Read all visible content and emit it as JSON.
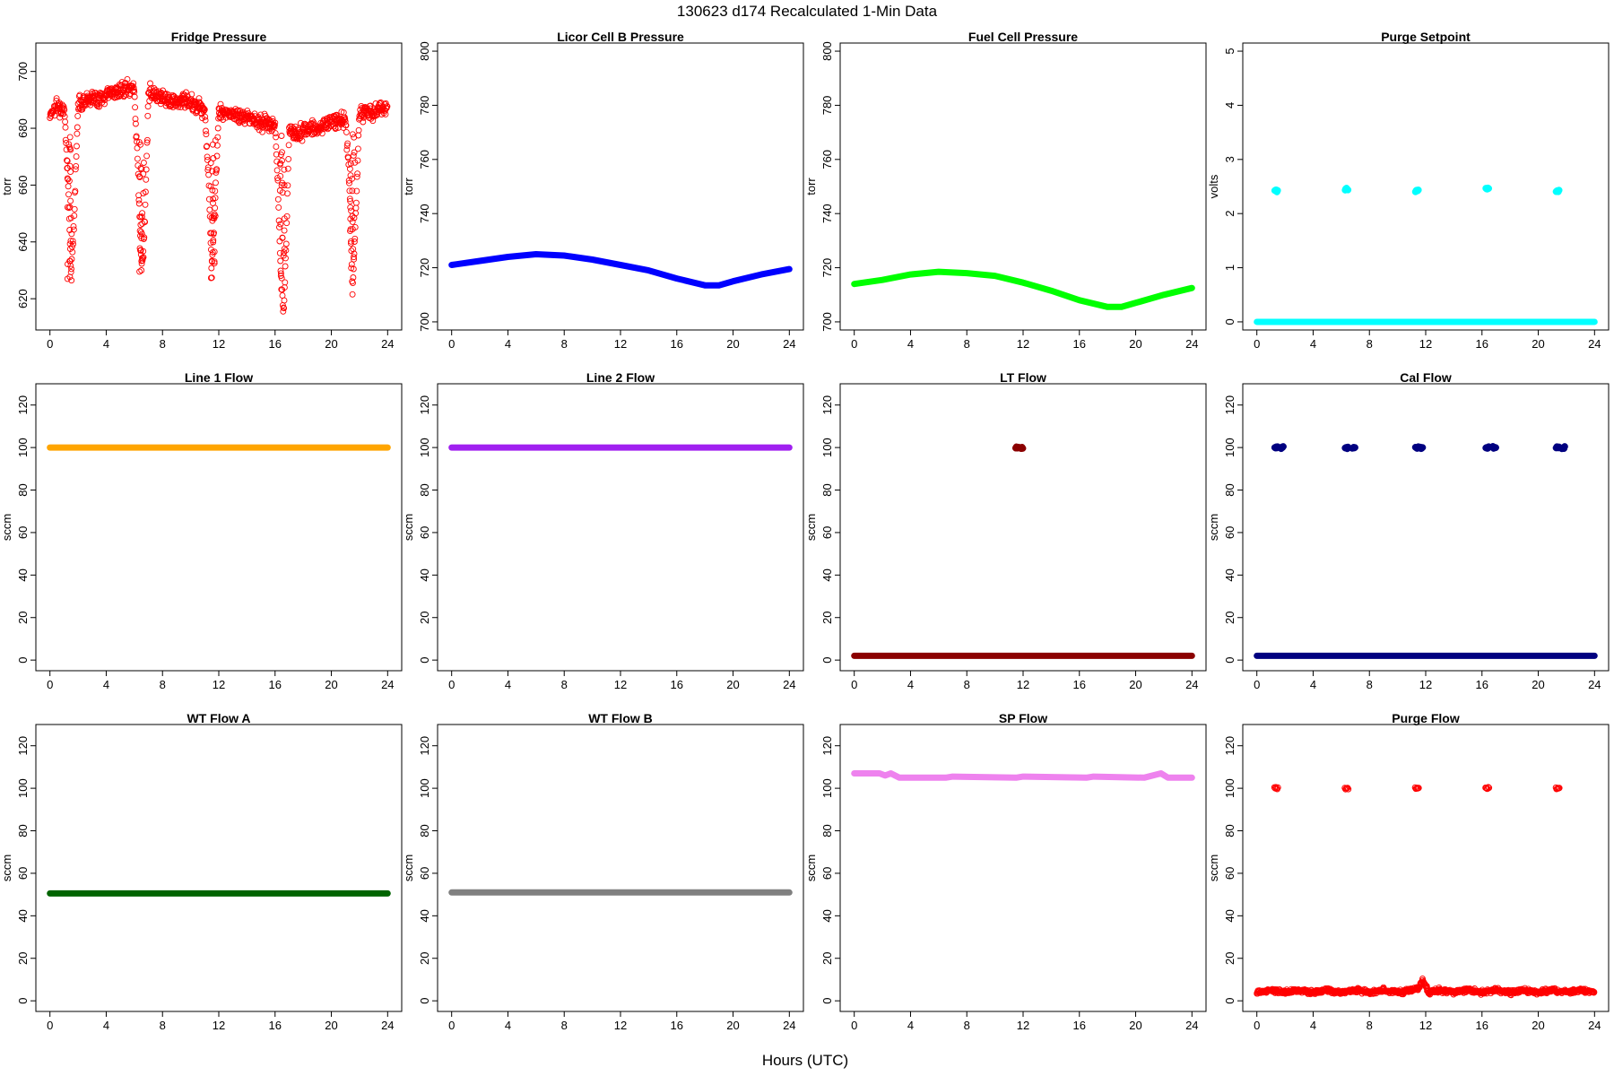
{
  "figure": {
    "title": "130623   d174   Recalculated 1-Min Data",
    "xlabel": "Hours (UTC)"
  },
  "chart_data": [
    {
      "type": "scatter",
      "title": "Fridge Pressure",
      "ylabel": "torr",
      "xlabel": "",
      "xlim": [
        -1,
        25
      ],
      "ylim": [
        609,
        710
      ],
      "xticks": [
        0,
        4,
        8,
        12,
        16,
        20,
        24
      ],
      "yticks": [
        620,
        640,
        660,
        680,
        700
      ],
      "color": "#ff0000",
      "marker": "open-circle",
      "series": [
        {
          "x": [
            0,
            0.5,
            1,
            1.3,
            1.5,
            1.7,
            2,
            2.5,
            3,
            3.5,
            4,
            4.5,
            5,
            5.5,
            6,
            6.3,
            6.5,
            6.7,
            7,
            7.5,
            8,
            8.5,
            9,
            9.5,
            10,
            10.5,
            11,
            11.3,
            11.5,
            11.7,
            12,
            12.5,
            13,
            13.5,
            14,
            14.5,
            15,
            15.5,
            16,
            16.2,
            16.4,
            16.6,
            16.8,
            17,
            17.5,
            18,
            18.5,
            19,
            19.5,
            20,
            20.5,
            21,
            21.3,
            21.5,
            21.7,
            22,
            22.5,
            23,
            23.5,
            24
          ],
          "y": [
            685,
            688,
            687,
            660,
            630,
            645,
            689,
            690,
            691,
            690,
            692,
            693,
            693,
            694,
            694,
            660,
            630,
            640,
            693,
            692,
            691,
            690,
            689,
            690,
            689,
            688,
            687,
            660,
            628,
            650,
            686,
            685,
            685,
            684,
            684,
            683,
            682,
            682,
            681,
            660,
            628,
            615,
            640,
            680,
            678,
            679,
            680,
            680,
            681,
            682,
            683,
            683,
            660,
            622,
            645,
            685,
            686,
            686,
            687,
            687
          ]
        }
      ]
    },
    {
      "type": "line",
      "title": "Licor Cell B Pressure",
      "ylabel": "torr",
      "xlabel": "",
      "xlim": [
        -1,
        25
      ],
      "ylim": [
        697,
        803
      ],
      "xticks": [
        0,
        4,
        8,
        12,
        16,
        20,
        24
      ],
      "yticks": [
        700,
        720,
        740,
        760,
        780,
        800
      ],
      "color": "#0000ff",
      "series": [
        {
          "x": [
            0,
            2,
            4,
            6,
            8,
            10,
            12,
            14,
            16,
            18,
            19,
            20,
            22,
            24
          ],
          "y": [
            721,
            722.5,
            724,
            725,
            724.5,
            723,
            721,
            719,
            716,
            713.5,
            713.5,
            715,
            717.5,
            719.5
          ]
        }
      ]
    },
    {
      "type": "line",
      "title": "Fuel Cell Pressure",
      "ylabel": "torr",
      "xlabel": "",
      "xlim": [
        -1,
        25
      ],
      "ylim": [
        697,
        803
      ],
      "xticks": [
        0,
        4,
        8,
        12,
        16,
        20,
        24
      ],
      "yticks": [
        700,
        720,
        740,
        760,
        780,
        800
      ],
      "color": "#00ff00",
      "series": [
        {
          "x": [
            0,
            2,
            4,
            6,
            8,
            10,
            12,
            14,
            16,
            18,
            19,
            20,
            22,
            24
          ],
          "y": [
            714,
            715.5,
            717.5,
            718.5,
            718,
            717,
            714.5,
            711.5,
            708,
            705.5,
            705.5,
            707,
            710,
            712.5
          ]
        }
      ]
    },
    {
      "type": "scatter",
      "title": "Purge Setpoint",
      "ylabel": "volts",
      "xlabel": "",
      "xlim": [
        -1,
        25
      ],
      "ylim": [
        -0.15,
        5.15
      ],
      "xticks": [
        0,
        4,
        8,
        12,
        16,
        20,
        24
      ],
      "yticks": [
        0,
        1,
        2,
        3,
        4,
        5
      ],
      "color": "#00ffff",
      "marker": "filled-circle",
      "series": [
        {
          "x": [
            0,
            24
          ],
          "y": [
            0,
            0
          ]
        },
        {
          "x": [
            1.4,
            6.4,
            11.4,
            16.4,
            21.4
          ],
          "y": [
            2.42,
            2.45,
            2.42,
            2.45,
            2.42
          ]
        }
      ]
    },
    {
      "type": "line",
      "title": "Line 1 Flow",
      "ylabel": "sccm",
      "xlabel": "",
      "xlim": [
        -1,
        25
      ],
      "ylim": [
        -5,
        130
      ],
      "xticks": [
        0,
        4,
        8,
        12,
        16,
        20,
        24
      ],
      "yticks": [
        0,
        20,
        40,
        60,
        80,
        100,
        120
      ],
      "color": "#ffa500",
      "series": [
        {
          "x": [
            0,
            24
          ],
          "y": [
            100,
            100
          ]
        }
      ]
    },
    {
      "type": "line",
      "title": "Line 2 Flow",
      "ylabel": "sccm",
      "xlabel": "",
      "xlim": [
        -1,
        25
      ],
      "ylim": [
        -5,
        130
      ],
      "xticks": [
        0,
        4,
        8,
        12,
        16,
        20,
        24
      ],
      "yticks": [
        0,
        20,
        40,
        60,
        80,
        100,
        120
      ],
      "color": "#a020f0",
      "series": [
        {
          "x": [
            0,
            24
          ],
          "y": [
            100,
            100
          ]
        }
      ]
    },
    {
      "type": "scatter",
      "title": "LT Flow",
      "ylabel": "sccm",
      "xlabel": "",
      "xlim": [
        -1,
        25
      ],
      "ylim": [
        -5,
        130
      ],
      "xticks": [
        0,
        4,
        8,
        12,
        16,
        20,
        24
      ],
      "yticks": [
        0,
        20,
        40,
        60,
        80,
        100,
        120
      ],
      "color": "#8b0000",
      "marker": "filled-circle",
      "series": [
        {
          "x": [
            0,
            24
          ],
          "y": [
            2,
            2
          ]
        },
        {
          "x": [
            11.6,
            11.9
          ],
          "y": [
            100,
            100
          ]
        }
      ]
    },
    {
      "type": "scatter",
      "title": "Cal Flow",
      "ylabel": "sccm",
      "xlabel": "",
      "xlim": [
        -1,
        25
      ],
      "ylim": [
        -5,
        130
      ],
      "xticks": [
        0,
        4,
        8,
        12,
        16,
        20,
        24
      ],
      "yticks": [
        0,
        20,
        40,
        60,
        80,
        100,
        120
      ],
      "color": "#000080",
      "marker": "filled-circle",
      "series": [
        {
          "x": [
            0,
            24
          ],
          "y": [
            2,
            2
          ]
        },
        {
          "x": [
            1.4,
            1.8,
            6.4,
            6.9,
            11.4,
            11.7,
            16.4,
            16.9,
            21.4,
            21.8
          ],
          "y": [
            100,
            100,
            100,
            100,
            100,
            100,
            100,
            100,
            100,
            100
          ]
        }
      ]
    },
    {
      "type": "line",
      "title": "WT Flow A",
      "ylabel": "sccm",
      "xlabel": "",
      "xlim": [
        -1,
        25
      ],
      "ylim": [
        -5,
        130
      ],
      "xticks": [
        0,
        4,
        8,
        12,
        16,
        20,
        24
      ],
      "yticks": [
        0,
        20,
        40,
        60,
        80,
        100,
        120
      ],
      "color": "#006400",
      "series": [
        {
          "x": [
            0,
            24
          ],
          "y": [
            50.5,
            50.5
          ]
        }
      ]
    },
    {
      "type": "line",
      "title": "WT Flow B",
      "ylabel": "sccm",
      "xlabel": "",
      "xlim": [
        -1,
        25
      ],
      "ylim": [
        -5,
        130
      ],
      "xticks": [
        0,
        4,
        8,
        12,
        16,
        20,
        24
      ],
      "yticks": [
        0,
        20,
        40,
        60,
        80,
        100,
        120
      ],
      "color": "#808080",
      "series": [
        {
          "x": [
            0,
            24
          ],
          "y": [
            51,
            51
          ]
        }
      ]
    },
    {
      "type": "line",
      "title": "SP Flow",
      "ylabel": "sccm",
      "xlabel": "",
      "xlim": [
        -1,
        25
      ],
      "ylim": [
        -5,
        130
      ],
      "xticks": [
        0,
        4,
        8,
        12,
        16,
        20,
        24
      ],
      "yticks": [
        0,
        20,
        40,
        60,
        80,
        100,
        120
      ],
      "color": "#ee82ee",
      "series": [
        {
          "x": [
            0,
            1.8,
            2.2,
            2.6,
            3.2,
            6.5,
            7,
            11.5,
            12,
            16.5,
            17,
            20.6,
            21.8,
            22.3,
            24
          ],
          "y": [
            107,
            107,
            106,
            107,
            105,
            105,
            105.5,
            105,
            105.5,
            105,
            105.5,
            105,
            107,
            105,
            105
          ]
        }
      ]
    },
    {
      "type": "scatter",
      "title": "Purge Flow",
      "ylabel": "sccm",
      "xlabel": "",
      "xlim": [
        -1,
        25
      ],
      "ylim": [
        -5,
        130
      ],
      "xticks": [
        0,
        4,
        8,
        12,
        16,
        20,
        24
      ],
      "yticks": [
        0,
        20,
        40,
        60,
        80,
        100,
        120
      ],
      "color": "#ff0000",
      "marker": "open-circle",
      "series": [
        {
          "x": [
            0,
            1,
            2,
            3,
            4,
            5,
            6,
            7,
            8,
            9,
            10,
            11,
            11.5,
            11.8,
            12.2,
            13,
            14,
            15,
            16,
            17,
            18,
            19,
            20,
            21,
            22,
            23,
            24
          ],
          "y": [
            4,
            5,
            4,
            5,
            4,
            5,
            4,
            5,
            4,
            5,
            4,
            5,
            6,
            10,
            4,
            5,
            4,
            5,
            4,
            5,
            4,
            5,
            4,
            5,
            4,
            5,
            4
          ]
        },
        {
          "x": [
            1.4,
            6.4,
            11.4,
            16.4,
            21.4
          ],
          "y": [
            100,
            100,
            100,
            100,
            100
          ]
        }
      ]
    }
  ]
}
